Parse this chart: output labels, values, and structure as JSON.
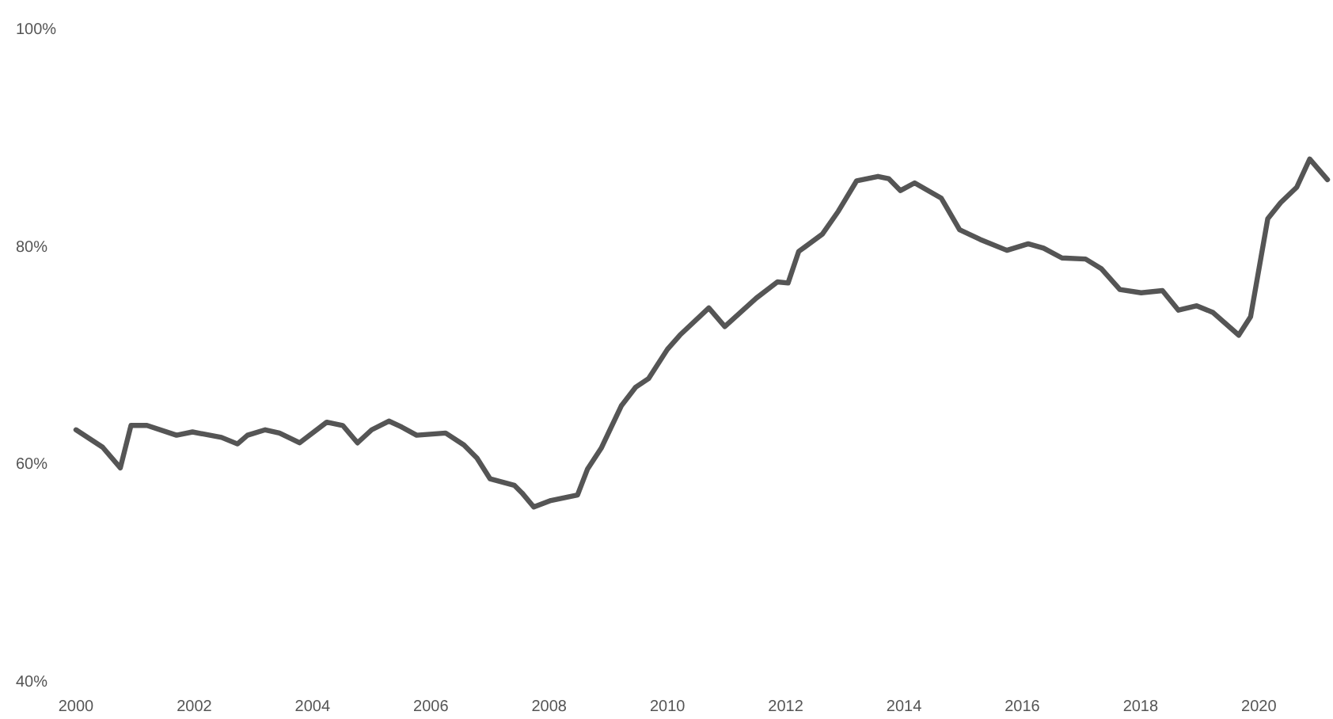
{
  "chart_data": {
    "type": "line",
    "xlim": [
      2000,
      2021.2
    ],
    "ylim": [
      40,
      100
    ],
    "xticks": [
      2000,
      2002,
      2004,
      2006,
      2008,
      2010,
      2012,
      2014,
      2016,
      2018,
      2020
    ],
    "yticks": [
      {
        "value": 40,
        "label": "40%"
      },
      {
        "value": 60,
        "label": "60%"
      },
      {
        "value": 80,
        "label": "80%"
      },
      {
        "value": 100,
        "label": "100%"
      }
    ],
    "grid": false,
    "marker": "none",
    "line_style": "solid",
    "series": [
      {
        "color": "#555555",
        "x": [
          2000.0,
          2000.45,
          2000.75,
          2000.93,
          2001.2,
          2001.7,
          2001.97,
          2002.46,
          2002.73,
          2002.9,
          2003.2,
          2003.44,
          2003.78,
          2004.24,
          2004.51,
          2004.76,
          2005.0,
          2005.29,
          2005.49,
          2005.76,
          2006.25,
          2006.56,
          2006.78,
          2007.0,
          2007.41,
          2007.54,
          2007.74,
          2008.03,
          2008.48,
          2008.65,
          2008.88,
          2009.22,
          2009.46,
          2009.68,
          2010.0,
          2010.21,
          2010.7,
          2010.97,
          2011.5,
          2011.86,
          2012.04,
          2012.22,
          2012.62,
          2012.89,
          2013.2,
          2013.56,
          2013.74,
          2013.94,
          2014.18,
          2014.63,
          2014.94,
          2015.29,
          2015.74,
          2016.1,
          2016.36,
          2016.67,
          2017.07,
          2017.34,
          2017.65,
          2018.01,
          2018.37,
          2018.64,
          2018.95,
          2019.22,
          2019.66,
          2019.86,
          2020.15,
          2020.37,
          2020.64,
          2020.86,
          2021.16
        ],
        "values": [
          63.1,
          61.5,
          59.6,
          63.5,
          63.5,
          62.6,
          62.9,
          62.4,
          61.8,
          62.6,
          63.1,
          62.8,
          61.9,
          63.8,
          63.5,
          61.9,
          63.1,
          63.9,
          63.4,
          62.6,
          62.8,
          61.7,
          60.5,
          58.6,
          58.0,
          57.3,
          56.0,
          56.6,
          57.1,
          59.5,
          61.4,
          65.3,
          67.0,
          67.8,
          70.5,
          71.8,
          74.3,
          72.6,
          75.2,
          76.7,
          76.6,
          79.5,
          81.1,
          83.2,
          86.0,
          86.4,
          86.2,
          85.1,
          85.8,
          84.4,
          81.5,
          80.6,
          79.6,
          80.2,
          79.8,
          78.9,
          78.8,
          77.9,
          76.0,
          75.7,
          75.9,
          74.1,
          74.5,
          73.9,
          71.8,
          73.5,
          82.5,
          84.0,
          85.4,
          88.0,
          86.1
        ]
      }
    ]
  }
}
